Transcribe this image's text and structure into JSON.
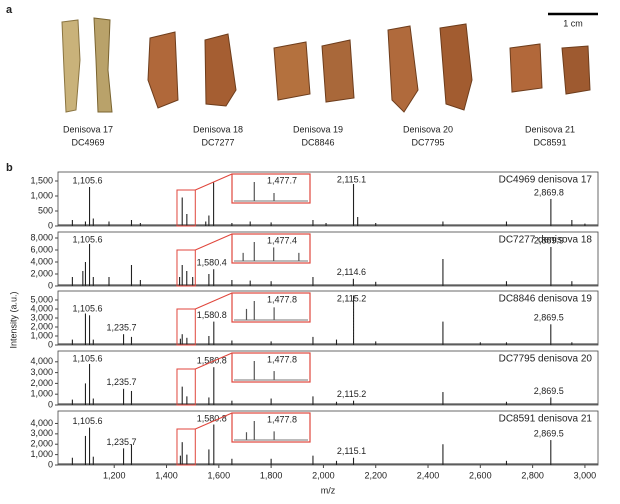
{
  "panel_a": {
    "label": "a",
    "scale_bar": "1 cm",
    "specimens": [
      {
        "name": "Denisova 17",
        "code": "DC4969"
      },
      {
        "name": "Denisova 18",
        "code": "DC7277"
      },
      {
        "name": "Denisova 19",
        "code": "DC8846"
      },
      {
        "name": "Denisova 20",
        "code": "DC7795"
      },
      {
        "name": "Denisova 21",
        "code": "DC8591"
      }
    ]
  },
  "panel_b": {
    "label": "b",
    "ylabel": "Intensity (a.u.)"
  },
  "chart_data": [
    {
      "type": "stem",
      "title": "DC4969 denisova 17",
      "color": "#222222",
      "xlim": [
        985,
        3050
      ],
      "ylim": [
        0,
        1800
      ],
      "yticks": [
        0,
        500,
        {
          "value": 1000,
          "label": "1,000"
        },
        {
          "value": 1500,
          "label": "1,500"
        }
      ],
      "x": [
        1040,
        1090,
        1105.6,
        1120,
        1180,
        1266,
        1300,
        1460,
        1477.7,
        1550,
        1562,
        1580,
        1650,
        1720,
        1800,
        1960,
        2010,
        2115.1,
        2131,
        2200,
        2457,
        2700,
        2869.8,
        2950,
        3000
      ],
      "values": [
        200,
        150,
        1300,
        250,
        150,
        200,
        100,
        950,
        400,
        150,
        350,
        1450,
        100,
        150,
        120,
        200,
        100,
        1400,
        300,
        100,
        150,
        150,
        900,
        200,
        80
      ],
      "annotations": [
        {
          "text": "1,105.6",
          "x": 1105.6
        },
        {
          "text": "2,115.1",
          "x": 2115.1
        },
        {
          "text": "2,869.8",
          "x": 2869.8
        }
      ],
      "inset": {
        "xlim": [
          1440,
          1510
        ],
        "label": "1,477.7"
      }
    },
    {
      "type": "stem",
      "title": "DC7277 denisova 18",
      "color": "#222222",
      "xlim": [
        985,
        3050
      ],
      "ylim": [
        0,
        9000
      ],
      "yticks": [
        0,
        {
          "value": 2000,
          "label": "2,000"
        },
        {
          "value": 4000,
          "label": "4,000"
        },
        {
          "value": 6000,
          "label": "6,000"
        },
        {
          "value": 8000,
          "label": "8,000"
        }
      ],
      "x": [
        1040,
        1080,
        1090,
        1105.6,
        1120,
        1180,
        1266,
        1300,
        1450,
        1460,
        1477.4,
        1500,
        1562,
        1580.4,
        1650,
        1720,
        1800,
        1960,
        2114.6,
        2200,
        2457,
        2700,
        2869.9,
        2950
      ],
      "values": [
        1500,
        2500,
        4000,
        7000,
        1500,
        1500,
        3500,
        1000,
        1500,
        3500,
        2500,
        1500,
        2000,
        2800,
        1000,
        900,
        800,
        1500,
        1200,
        700,
        4500,
        800,
        6500,
        800
      ],
      "annotations": [
        {
          "text": "1,105.6",
          "x": 1105.6
        },
        {
          "text": "1,580.4",
          "x": 1580.4
        },
        {
          "text": "2,114.6",
          "x": 2114.6
        },
        {
          "text": "2,869.9",
          "x": 2869.9
        }
      ],
      "inset": {
        "xlim": [
          1440,
          1510
        ],
        "label": "1,477.4"
      }
    },
    {
      "type": "stem",
      "title": "DC8846 denisova 19",
      "color": "#222222",
      "xlim": [
        985,
        3050
      ],
      "ylim": [
        0,
        6000
      ],
      "yticks": [
        0,
        {
          "value": 1000,
          "label": "1,000"
        },
        {
          "value": 2000,
          "label": "2,000"
        },
        {
          "value": 3000,
          "label": "3,000"
        },
        {
          "value": 4000,
          "label": "4,000"
        },
        {
          "value": 5000,
          "label": "5,000"
        }
      ],
      "x": [
        1040,
        1090,
        1105.6,
        1120,
        1235.7,
        1266,
        1453,
        1460,
        1477.8,
        1562,
        1580.8,
        1650,
        1800,
        1960,
        2050,
        2115.2,
        2200,
        2457,
        2600,
        2700,
        2869.5,
        2950
      ],
      "values": [
        600,
        3500,
        3300,
        600,
        1200,
        900,
        700,
        1200,
        800,
        1000,
        2600,
        500,
        400,
        900,
        600,
        5500,
        400,
        2600,
        300,
        300,
        2300,
        300
      ],
      "annotations": [
        {
          "text": "1,105.6",
          "x": 1105.6
        },
        {
          "text": "1,235.7",
          "x": 1235.7
        },
        {
          "text": "1,580.8",
          "x": 1580.8
        },
        {
          "text": "2,115.2",
          "x": 2115.2
        },
        {
          "text": "2,869.5",
          "x": 2869.5
        }
      ],
      "inset": {
        "xlim": [
          1440,
          1510
        ],
        "label": "1,477.8"
      }
    },
    {
      "type": "stem",
      "title": "DC7795 denisova 20",
      "color": "#222222",
      "xlim": [
        985,
        3050
      ],
      "ylim": [
        0,
        5000
      ],
      "yticks": [
        0,
        {
          "value": 1000,
          "label": "1,000"
        },
        {
          "value": 2000,
          "label": "2,000"
        },
        {
          "value": 3000,
          "label": "3,000"
        },
        {
          "value": 4000,
          "label": "4,000"
        }
      ],
      "x": [
        1040,
        1090,
        1105.6,
        1120,
        1235.7,
        1266,
        1460,
        1477.8,
        1562,
        1580.8,
        1650,
        1800,
        1960,
        2050,
        2115.2,
        2457,
        2700,
        2869.5
      ],
      "values": [
        500,
        2000,
        3800,
        600,
        1500,
        1300,
        1700,
        800,
        700,
        3500,
        400,
        600,
        800,
        300,
        400,
        1200,
        300,
        700
      ],
      "annotations": [
        {
          "text": "1,105.6",
          "x": 1105.6
        },
        {
          "text": "1,235.7",
          "x": 1235.7
        },
        {
          "text": "1,580.8",
          "x": 1580.8
        },
        {
          "text": "2,115.2",
          "x": 2115.2
        },
        {
          "text": "2,869.5",
          "x": 2869.5
        }
      ],
      "inset": {
        "xlim": [
          1440,
          1510
        ],
        "label": "1,477.8"
      }
    },
    {
      "type": "stem",
      "title": "DC8591 denisova 21",
      "color": "#222222",
      "xlim": [
        985,
        3050
      ],
      "ylim": [
        0,
        5200
      ],
      "yticks": [
        0,
        {
          "value": 1000,
          "label": "1,000"
        },
        {
          "value": 2000,
          "label": "2,000"
        },
        {
          "value": 3000,
          "label": "3,000"
        },
        {
          "value": 4000,
          "label": "4,000"
        }
      ],
      "x": [
        1040,
        1090,
        1105.6,
        1120,
        1235.7,
        1266,
        1453,
        1460,
        1477.8,
        1562,
        1580.8,
        1650,
        1800,
        1960,
        2050,
        2115.1,
        2457,
        2700,
        2869.5
      ],
      "values": [
        700,
        2800,
        3600,
        800,
        1600,
        2000,
        900,
        2200,
        1000,
        1500,
        3900,
        600,
        600,
        900,
        400,
        700,
        2000,
        400,
        2400
      ],
      "annotations": [
        {
          "text": "1,105.6",
          "x": 1105.6
        },
        {
          "text": "1,235.7",
          "x": 1235.7
        },
        {
          "text": "1,580.8",
          "x": 1580.8
        },
        {
          "text": "2,115.1",
          "x": 2115.1
        },
        {
          "text": "2,869.5",
          "x": 2869.5
        }
      ],
      "inset": {
        "xlim": [
          1440,
          1510
        ],
        "label": "1,477.8"
      },
      "xlabel": "m/z",
      "xticks": [
        {
          "value": 1200,
          "label": "1,200"
        },
        {
          "value": 1400,
          "label": "1,400"
        },
        {
          "value": 1600,
          "label": "1,600"
        },
        {
          "value": 1800,
          "label": "1,800"
        },
        {
          "value": 2000,
          "label": "2,000"
        },
        {
          "value": 2200,
          "label": "2,200"
        },
        {
          "value": 2400,
          "label": "2,400"
        },
        {
          "value": 2600,
          "label": "2,600"
        },
        {
          "value": 2800,
          "label": "2,800"
        },
        {
          "value": 3000,
          "label": "3,000"
        }
      ]
    }
  ]
}
